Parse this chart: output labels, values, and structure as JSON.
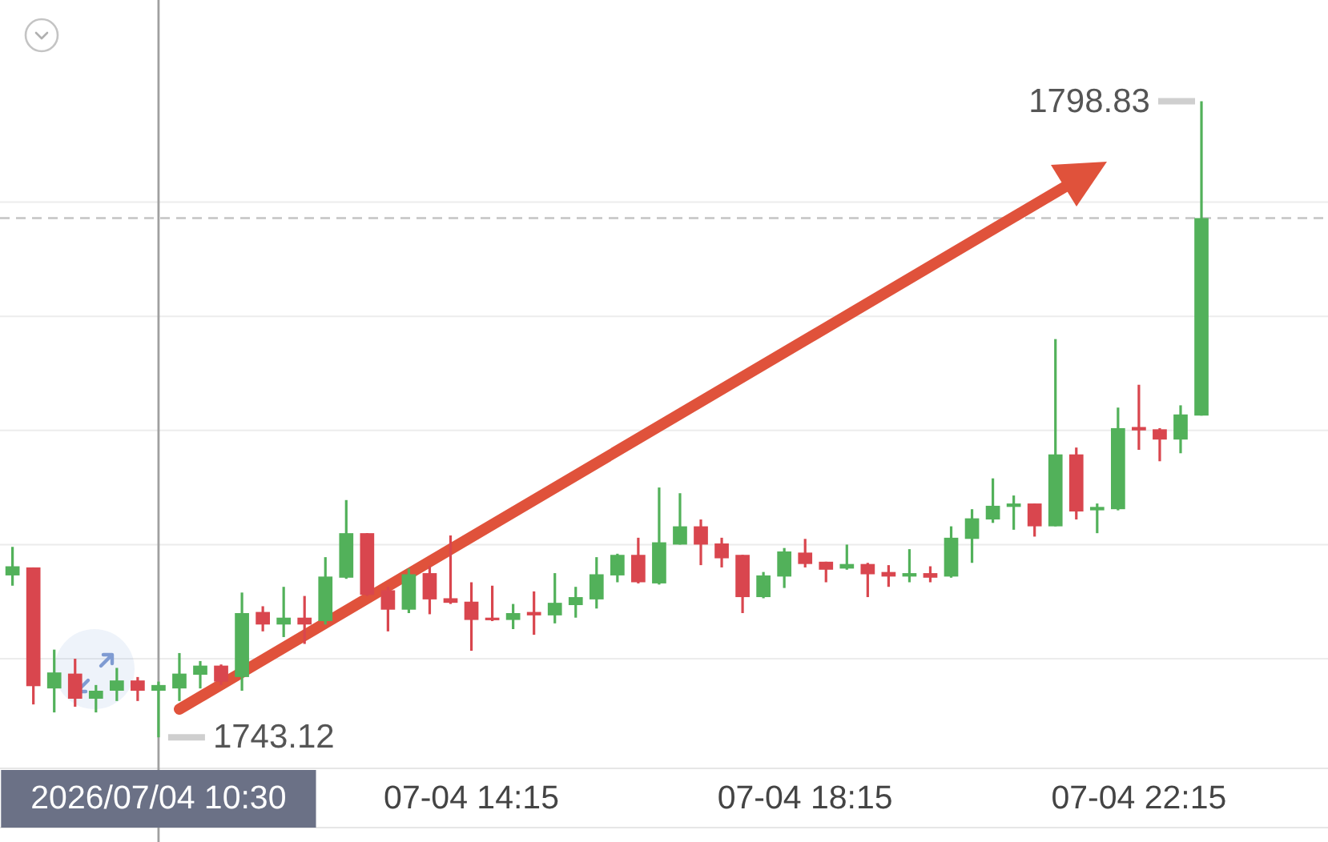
{
  "chart_data": {
    "type": "candlestick",
    "x": [
      "2026-07-04T08:45",
      "2026-07-04T09:00",
      "2026-07-04T09:15",
      "2026-07-04T09:30",
      "2026-07-04T09:45",
      "2026-07-04T10:00",
      "2026-07-04T10:15",
      "2026-07-04T10:30",
      "2026-07-04T10:45",
      "2026-07-04T11:00",
      "2026-07-04T11:15",
      "2026-07-04T11:30",
      "2026-07-04T11:45",
      "2026-07-04T12:00",
      "2026-07-04T12:15",
      "2026-07-04T12:30",
      "2026-07-04T12:45",
      "2026-07-04T13:00",
      "2026-07-04T13:15",
      "2026-07-04T13:30",
      "2026-07-04T13:45",
      "2026-07-04T14:00",
      "2026-07-04T14:15",
      "2026-07-04T14:30",
      "2026-07-04T14:45",
      "2026-07-04T15:00",
      "2026-07-04T15:15",
      "2026-07-04T15:30",
      "2026-07-04T15:45",
      "2026-07-04T16:00",
      "2026-07-04T16:15",
      "2026-07-04T16:30",
      "2026-07-04T16:45",
      "2026-07-04T17:00",
      "2026-07-04T17:15",
      "2026-07-04T17:30",
      "2026-07-04T17:45",
      "2026-07-04T18:00",
      "2026-07-04T18:15",
      "2026-07-04T18:30",
      "2026-07-04T18:45",
      "2026-07-04T19:00",
      "2026-07-04T19:15",
      "2026-07-04T19:30",
      "2026-07-04T19:45",
      "2026-07-04T20:00",
      "2026-07-04T20:15",
      "2026-07-04T20:30",
      "2026-07-04T20:45",
      "2026-07-04T21:00",
      "2026-07-04T21:15",
      "2026-07-04T21:30",
      "2026-07-04T21:45",
      "2026-07-04T22:00",
      "2026-07-04T22:15",
      "2026-07-04T22:30",
      "2026-07-04T22:45",
      "2026-07-04T23:00"
    ],
    "ohlc": [
      [
        1757.3,
        1759.8,
        1756.4,
        1758.1
      ],
      [
        1758.0,
        1758.0,
        1746.0,
        1747.6
      ],
      [
        1747.4,
        1750.8,
        1745.3,
        1748.8
      ],
      [
        1748.7,
        1750.0,
        1745.8,
        1746.5
      ],
      [
        1746.5,
        1747.7,
        1745.3,
        1747.2
      ],
      [
        1747.2,
        1749.2,
        1746.3,
        1748.1
      ],
      [
        1748.1,
        1748.4,
        1746.3,
        1747.2
      ],
      [
        1747.2,
        1748.0,
        1743.12,
        1747.7
      ],
      [
        1747.4,
        1750.5,
        1746.3,
        1748.7
      ],
      [
        1748.6,
        1749.8,
        1747.4,
        1749.4
      ],
      [
        1749.4,
        1749.5,
        1747.7,
        1748.0
      ],
      [
        1748.4,
        1755.8,
        1747.2,
        1754.0
      ],
      [
        1754.1,
        1754.6,
        1752.4,
        1753.0
      ],
      [
        1753.0,
        1756.3,
        1751.9,
        1753.6
      ],
      [
        1753.6,
        1755.5,
        1751.3,
        1753.0
      ],
      [
        1753.3,
        1758.9,
        1753.0,
        1757.2
      ],
      [
        1757.1,
        1763.9,
        1757.0,
        1761.0
      ],
      [
        1761.0,
        1761.0,
        1755.5,
        1755.6
      ],
      [
        1756.0,
        1756.3,
        1752.4,
        1754.3
      ],
      [
        1754.3,
        1757.9,
        1754.0,
        1757.4
      ],
      [
        1757.5,
        1758.1,
        1753.9,
        1755.2
      ],
      [
        1755.3,
        1760.8,
        1754.8,
        1754.9
      ],
      [
        1755.0,
        1756.7,
        1750.7,
        1753.4
      ],
      [
        1753.6,
        1756.4,
        1753.3,
        1753.4
      ],
      [
        1753.4,
        1754.8,
        1752.6,
        1754.0
      ],
      [
        1754.1,
        1755.9,
        1752.1,
        1753.8
      ],
      [
        1753.8,
        1757.5,
        1753.1,
        1754.9
      ],
      [
        1754.7,
        1756.3,
        1753.6,
        1755.4
      ],
      [
        1755.2,
        1758.9,
        1754.4,
        1757.4
      ],
      [
        1757.3,
        1759.2,
        1756.7,
        1759.1
      ],
      [
        1759.1,
        1760.6,
        1756.6,
        1756.7
      ],
      [
        1756.6,
        1765.0,
        1756.5,
        1760.2
      ],
      [
        1760.0,
        1764.5,
        1760.0,
        1761.6
      ],
      [
        1761.6,
        1762.2,
        1758.2,
        1760.0
      ],
      [
        1760.1,
        1760.6,
        1758.0,
        1758.8
      ],
      [
        1759.1,
        1759.1,
        1754.0,
        1755.4
      ],
      [
        1755.4,
        1757.6,
        1755.3,
        1757.3
      ],
      [
        1757.2,
        1759.7,
        1756.2,
        1759.4
      ],
      [
        1759.3,
        1760.5,
        1758.0,
        1758.3
      ],
      [
        1758.5,
        1758.5,
        1756.7,
        1757.8
      ],
      [
        1757.9,
        1760.0,
        1757.8,
        1758.3
      ],
      [
        1758.3,
        1758.4,
        1755.4,
        1757.4
      ],
      [
        1757.6,
        1758.2,
        1756.3,
        1757.2
      ],
      [
        1757.2,
        1759.6,
        1756.7,
        1757.5
      ],
      [
        1757.5,
        1758.1,
        1756.7,
        1757.1
      ],
      [
        1757.2,
        1761.6,
        1757.1,
        1760.6
      ],
      [
        1760.5,
        1763.1,
        1758.4,
        1762.3
      ],
      [
        1762.2,
        1765.8,
        1761.9,
        1763.4
      ],
      [
        1763.3,
        1764.3,
        1761.3,
        1763.6
      ],
      [
        1763.6,
        1763.6,
        1760.7,
        1761.6
      ],
      [
        1761.6,
        1778.0,
        1761.6,
        1767.9
      ],
      [
        1767.9,
        1768.5,
        1762.2,
        1762.9
      ],
      [
        1763.0,
        1763.6,
        1761.0,
        1763.3
      ],
      [
        1763.1,
        1772.0,
        1763.0,
        1770.2
      ],
      [
        1770.3,
        1774.0,
        1768.3,
        1770.0
      ],
      [
        1770.1,
        1770.2,
        1767.3,
        1769.2
      ],
      [
        1769.2,
        1772.2,
        1768.0,
        1771.4
      ],
      [
        1771.3,
        1798.83,
        1771.3,
        1788.6
      ]
    ],
    "colors": [
      "#52b15a",
      "#d9464e",
      "#52b15a",
      "#d9464e",
      "#52b15a",
      "#52b15a",
      "#d9464e",
      "#52b15a",
      "#52b15a",
      "#52b15a",
      "#d9464e",
      "#52b15a",
      "#d9464e",
      "#52b15a",
      "#d9464e",
      "#52b15a",
      "#52b15a",
      "#d9464e",
      "#d9464e",
      "#52b15a",
      "#d9464e",
      "#d9464e",
      "#d9464e",
      "#d9464e",
      "#52b15a",
      "#d9464e",
      "#52b15a",
      "#52b15a",
      "#52b15a",
      "#52b15a",
      "#d9464e",
      "#52b15a",
      "#52b15a",
      "#d9464e",
      "#d9464e",
      "#d9464e",
      "#52b15a",
      "#52b15a",
      "#d9464e",
      "#d9464e",
      "#52b15a",
      "#d9464e",
      "#d9464e",
      "#52b15a",
      "#d9464e",
      "#52b15a",
      "#52b15a",
      "#52b15a",
      "#52b15a",
      "#d9464e",
      "#52b15a",
      "#d9464e",
      "#52b15a",
      "#52b15a",
      "#d9464e",
      "#d9464e",
      "#52b15a",
      "#52b15a"
    ],
    "xlim": [
      "2026-07-04T08:36",
      "2026-07-05T00:31"
    ],
    "xticks": [
      {
        "value": "2026-07-04T14:15",
        "label": "07-04 14:15"
      },
      {
        "value": "2026-07-04T18:15",
        "label": "07-04 18:15"
      },
      {
        "value": "2026-07-04T22:15",
        "label": "07-04 22:15"
      }
    ],
    "ylim": [
      1740.4,
      1807.7
    ],
    "yticks": [
      {
        "value": 1750,
        "label": null
      },
      {
        "value": 1760,
        "label": null
      },
      {
        "value": 1770,
        "label": null
      },
      {
        "value": 1780,
        "label": null
      },
      {
        "value": 1790,
        "label": null
      }
    ],
    "grid": "y",
    "tick_labels": "x",
    "ref_lines": [
      {
        "axis": "x",
        "value": "2026-07-04T10:30",
        "label": "2026/07/04 10:30",
        "color": "#a0a0a0"
      },
      {
        "axis": "y",
        "value": 1788.6,
        "color": "#c4c4c4",
        "line_style": "dashed"
      }
    ],
    "annotations": [
      {
        "text": "1798.83",
        "x": "2026-07-04T23:00",
        "y": 1798.83
      },
      {
        "text": "1743.12",
        "x": "2026-07-04T10:30",
        "y": 1743.12
      }
    ]
  }
}
